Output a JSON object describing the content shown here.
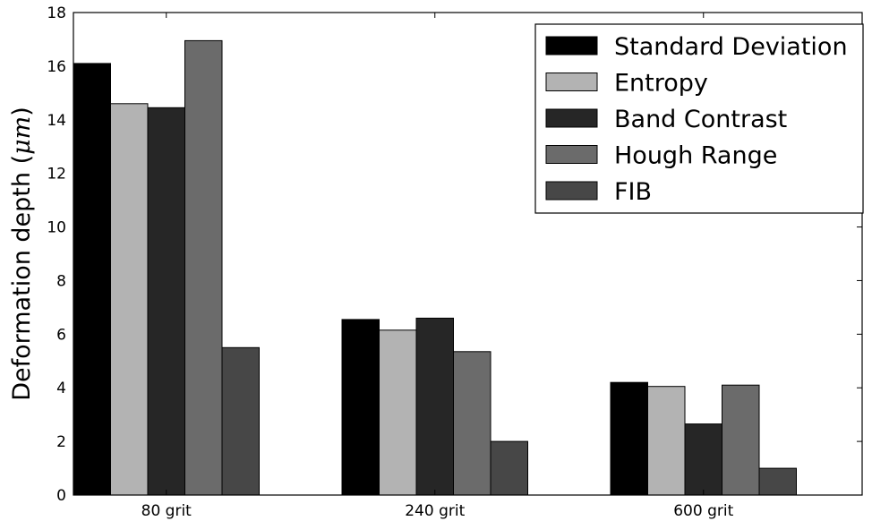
{
  "chart_data": {
    "type": "bar",
    "categories": [
      "80 grit",
      "240 grit",
      "600 grit"
    ],
    "series": [
      {
        "name": "Standard Deviation",
        "values": [
          16.1,
          6.55,
          4.2
        ],
        "color": "#000000"
      },
      {
        "name": "Entropy",
        "values": [
          14.6,
          6.15,
          4.05
        ],
        "color": "#b3b3b3"
      },
      {
        "name": "Band Contrast",
        "values": [
          14.45,
          6.6,
          2.65
        ],
        "color": "#262626"
      },
      {
        "name": "Hough Range",
        "values": [
          16.95,
          5.35,
          4.1
        ],
        "color": "#6b6b6b"
      },
      {
        "name": "FIB",
        "values": [
          5.5,
          2.0,
          1.0
        ],
        "color": "#474747"
      }
    ],
    "ylabel": "Deformation depth (μm)",
    "ylabel_parts": {
      "text": "Deformation depth (",
      "unit": "μm",
      "close": ")"
    },
    "ylim": [
      0,
      18
    ],
    "yticks": [
      0,
      2,
      4,
      6,
      8,
      10,
      12,
      14,
      16,
      18
    ],
    "grid": false,
    "legend_position": "top-right"
  }
}
